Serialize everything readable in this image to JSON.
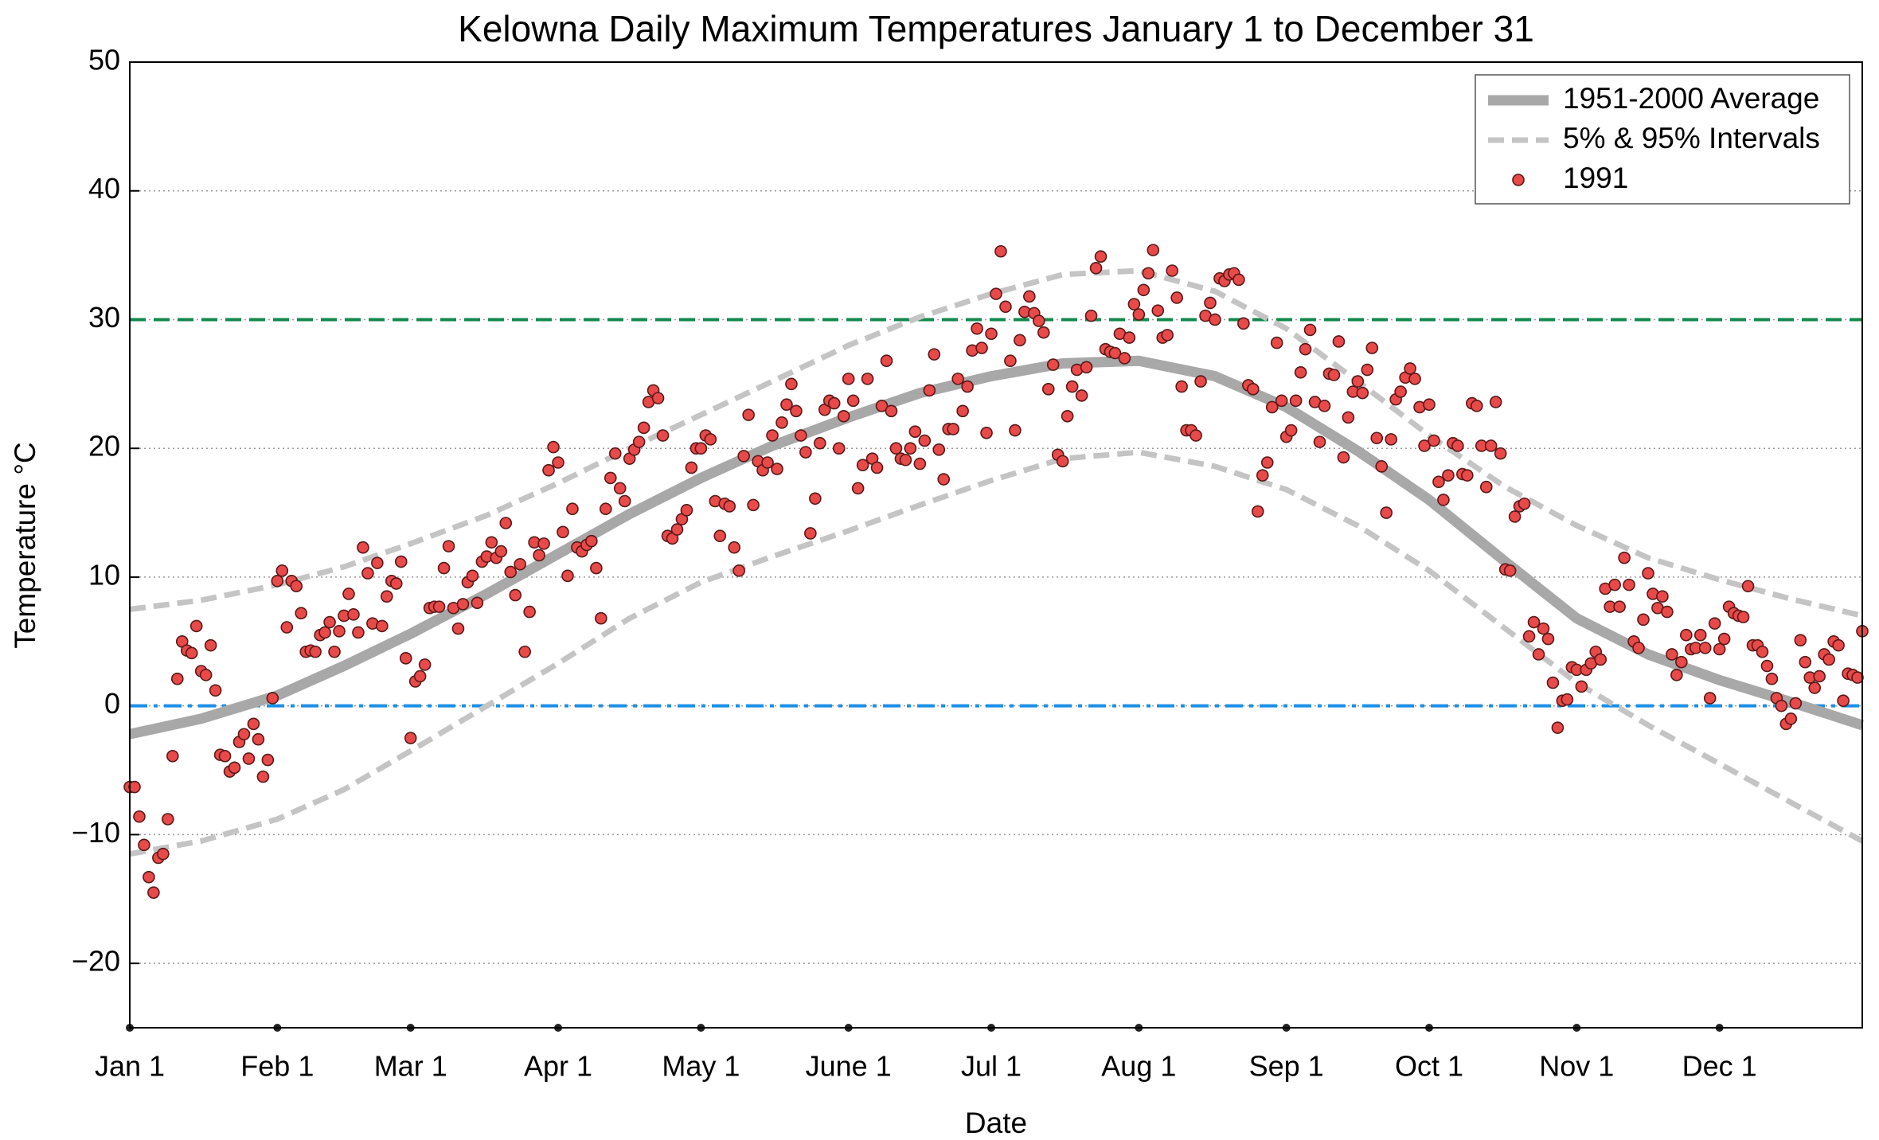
{
  "chart_data": {
    "type": "scatter",
    "title": "Kelowna Daily Maximum Temperatures January 1 to December 31",
    "xlabel": "Date",
    "ylabel": "Temperature °C",
    "xlim": [
      0,
      364
    ],
    "ylim": [
      -25,
      50
    ],
    "xticks": [
      {
        "value": 0,
        "label": "Jan 1"
      },
      {
        "value": 31,
        "label": "Feb 1"
      },
      {
        "value": 59,
        "label": "Mar 1"
      },
      {
        "value": 90,
        "label": "Apr 1"
      },
      {
        "value": 120,
        "label": "May 1"
      },
      {
        "value": 151,
        "label": "June 1"
      },
      {
        "value": 181,
        "label": "Jul 1"
      },
      {
        "value": 212,
        "label": "Aug 1"
      },
      {
        "value": 243,
        "label": "Sep 1"
      },
      {
        "value": 273,
        "label": "Oct 1"
      },
      {
        "value": 304,
        "label": "Nov 1"
      },
      {
        "value": 334,
        "label": "Dec 1"
      }
    ],
    "yticks": [
      {
        "value": -20,
        "label": "−20"
      },
      {
        "value": -10,
        "label": "−10"
      },
      0,
      10,
      20,
      30,
      40,
      50
    ],
    "grid": true,
    "legend": "upper right",
    "hlines": [
      {
        "value": 30,
        "color": "#14894e",
        "style": "dashed"
      },
      {
        "value": 0,
        "color": "#1a8fe6",
        "style": "dashdot"
      }
    ],
    "series": [
      {
        "name": "1951-2000 Average",
        "type": "line",
        "style": "solid",
        "color": "#a8a8a8",
        "x": [
          0,
          15,
          31,
          45,
          59,
          75,
          90,
          105,
          120,
          135,
          151,
          166,
          181,
          196,
          212,
          228,
          243,
          258,
          273,
          289,
          304,
          319,
          334,
          349,
          364
        ],
        "values": [
          -2.2,
          -1.0,
          0.8,
          3.1,
          5.6,
          8.7,
          11.8,
          14.9,
          17.7,
          20.2,
          22.4,
          24.3,
          25.6,
          26.6,
          26.8,
          25.6,
          23.2,
          19.8,
          16.0,
          11.2,
          6.8,
          4.0,
          2.0,
          0.3,
          -1.5
        ]
      },
      {
        "name": "5% & 95% Intervals",
        "type": "line",
        "style": "dashed",
        "color": "#c4c4c4",
        "x": [
          0,
          15,
          31,
          45,
          59,
          75,
          90,
          105,
          120,
          135,
          151,
          166,
          181,
          196,
          212,
          228,
          243,
          258,
          273,
          289,
          304,
          319,
          334,
          349,
          364
        ],
        "values": [
          7.5,
          8.2,
          9.4,
          10.8,
          12.6,
          14.8,
          17.3,
          20.0,
          22.6,
          25.2,
          28.0,
          30.2,
          32.0,
          33.5,
          33.8,
          32.2,
          29.3,
          25.2,
          21.0,
          17.0,
          14.0,
          11.5,
          9.8,
          8.3,
          7.0
        ],
        "lower": [
          -11.5,
          -10.5,
          -8.8,
          -6.5,
          -3.5,
          0.0,
          3.3,
          6.8,
          9.6,
          11.6,
          13.6,
          15.6,
          17.5,
          19.2,
          19.7,
          18.6,
          16.8,
          14.0,
          10.5,
          6.0,
          1.8,
          -1.5,
          -4.5,
          -7.5,
          -10.5
        ]
      },
      {
        "name": "1991",
        "type": "scatter",
        "color": "#e84a4a",
        "x": [
          0,
          1,
          2,
          3,
          4,
          5,
          6,
          7,
          8,
          9,
          10,
          11,
          12,
          13,
          14,
          15,
          16,
          17,
          18,
          19,
          20,
          21,
          22,
          23,
          24,
          25,
          26,
          27,
          28,
          29,
          30,
          31,
          32,
          33,
          34,
          35,
          36,
          37,
          38,
          39,
          40,
          41,
          42,
          43,
          44,
          45,
          46,
          47,
          48,
          49,
          50,
          51,
          52,
          53,
          54,
          55,
          56,
          57,
          58,
          59,
          60,
          61,
          62,
          63,
          64,
          65,
          66,
          67,
          68,
          69,
          70,
          71,
          72,
          73,
          74,
          75,
          76,
          77,
          78,
          79,
          80,
          81,
          82,
          83,
          84,
          85,
          86,
          87,
          88,
          89,
          90,
          91,
          92,
          93,
          94,
          95,
          96,
          97,
          98,
          99,
          100,
          101,
          102,
          103,
          104,
          105,
          106,
          107,
          108,
          109,
          110,
          111,
          112,
          113,
          114,
          115,
          116,
          117,
          118,
          119,
          120,
          121,
          122,
          123,
          124,
          125,
          126,
          127,
          128,
          129,
          130,
          131,
          132,
          133,
          134,
          135,
          136,
          137,
          138,
          139,
          140,
          141,
          142,
          143,
          144,
          145,
          146,
          147,
          148,
          149,
          150,
          151,
          152,
          153,
          154,
          155,
          156,
          157,
          158,
          159,
          160,
          161,
          162,
          163,
          164,
          165,
          166,
          167,
          168,
          169,
          170,
          171,
          172,
          173,
          174,
          175,
          176,
          177,
          178,
          179,
          180,
          181,
          182,
          183,
          184,
          185,
          186,
          187,
          188,
          189,
          190,
          191,
          192,
          193,
          194,
          195,
          196,
          197,
          198,
          199,
          200,
          201,
          202,
          203,
          204,
          205,
          206,
          207,
          208,
          209,
          210,
          211,
          212,
          213,
          214,
          215,
          216,
          217,
          218,
          219,
          220,
          221,
          222,
          223,
          224,
          225,
          226,
          227,
          228,
          229,
          230,
          231,
          232,
          233,
          234,
          235,
          236,
          237,
          238,
          239,
          240,
          241,
          242,
          243,
          244,
          245,
          246,
          247,
          248,
          249,
          250,
          251,
          252,
          253,
          254,
          255,
          256,
          257,
          258,
          259,
          260,
          261,
          262,
          263,
          264,
          265,
          266,
          267,
          268,
          269,
          270,
          271,
          272,
          273,
          274,
          275,
          276,
          277,
          278,
          279,
          280,
          281,
          282,
          283,
          284,
          285,
          286,
          287,
          288,
          289,
          290,
          291,
          292,
          293,
          294,
          295,
          296,
          297,
          298,
          299,
          300,
          301,
          302,
          303,
          304,
          305,
          306,
          307,
          308,
          309,
          310,
          311,
          312,
          313,
          314,
          315,
          316,
          317,
          318,
          319,
          320,
          321,
          322,
          323,
          324,
          325,
          326,
          327,
          328,
          329,
          330,
          331,
          332,
          333,
          334,
          335,
          336,
          337,
          338,
          339,
          340,
          341,
          342,
          343,
          344,
          345,
          346,
          347,
          348,
          349,
          350,
          351,
          352,
          353,
          354,
          355,
          356,
          357,
          358,
          359,
          360,
          361,
          362,
          363,
          364
        ],
        "values": [
          -6.3,
          -6.3,
          -8.6,
          -10.8,
          -13.3,
          -14.5,
          -11.8,
          -11.5,
          -8.8,
          -3.9,
          2.1,
          5.0,
          4.3,
          4.1,
          6.2,
          2.7,
          2.4,
          4.7,
          1.2,
          -3.8,
          -3.9,
          -5.1,
          -4.8,
          -2.8,
          -2.2,
          -4.1,
          -1.4,
          -2.6,
          -5.5,
          -4.2,
          0.6,
          9.7,
          10.5,
          6.1,
          9.7,
          9.3,
          7.2,
          4.2,
          4.3,
          4.2,
          5.5,
          5.7,
          6.5,
          4.2,
          5.8,
          7.0,
          8.7,
          7.1,
          5.7,
          12.3,
          10.3,
          6.4,
          11.1,
          6.2,
          8.5,
          9.7,
          9.5,
          11.2,
          3.7,
          -2.5,
          1.9,
          2.3,
          3.2,
          7.6,
          7.7,
          7.7,
          10.7,
          12.4,
          7.6,
          6.0,
          7.9,
          9.6,
          10.1,
          8.0,
          11.2,
          11.6,
          12.7,
          11.5,
          12.0,
          14.2,
          10.4,
          8.6,
          11.0,
          4.2,
          7.3,
          12.7,
          11.7,
          12.6,
          18.3,
          20.1,
          18.9,
          13.5,
          10.1,
          15.3,
          12.3,
          12.0,
          12.5,
          12.8,
          10.7,
          6.8,
          15.3,
          17.7,
          19.6,
          16.9,
          15.9,
          19.2,
          19.9,
          20.5,
          21.6,
          23.6,
          24.5,
          23.9,
          21.0,
          13.2,
          13.0,
          13.7,
          14.5,
          15.2,
          18.5,
          20.0,
          20.0,
          21.0,
          20.7,
          15.9,
          13.2,
          15.7,
          15.5,
          12.3,
          10.5,
          19.4,
          22.6,
          15.6,
          19.0,
          18.3,
          18.9,
          21.0,
          18.4,
          22.0,
          23.4,
          25.0,
          22.9,
          21.0,
          19.7,
          13.4,
          16.1,
          20.4,
          23.0,
          23.7,
          23.5,
          20.0,
          22.5,
          25.4,
          23.7,
          16.9,
          18.7,
          25.4,
          19.2,
          18.5,
          23.3,
          26.8,
          22.9,
          20.0,
          19.2,
          19.1,
          20.0,
          21.3,
          18.8,
          20.6,
          24.5,
          27.3,
          19.9,
          17.6,
          21.5,
          21.5,
          25.4,
          22.9,
          24.8,
          27.6,
          29.3,
          27.8,
          21.2,
          28.9,
          32.0,
          35.3,
          31.0,
          26.8,
          21.4,
          28.4,
          30.6,
          31.8,
          30.5,
          29.9,
          29.0,
          24.6,
          26.5,
          19.5,
          19.0,
          22.5,
          24.8,
          26.1,
          24.1,
          26.3,
          30.3,
          34.0,
          34.9,
          27.7,
          27.5,
          27.4,
          28.9,
          27.0,
          28.6,
          31.2,
          30.4,
          32.3,
          33.6,
          35.4,
          30.7,
          28.6,
          28.8,
          33.8,
          31.7,
          24.8,
          21.4,
          21.4,
          21.0,
          25.2,
          30.3,
          31.3,
          30.0,
          33.2,
          33.0,
          33.5,
          33.6,
          33.1,
          29.7,
          24.9,
          24.6,
          15.1,
          17.9,
          18.9,
          23.2,
          28.2,
          23.7,
          20.9,
          21.4,
          23.7,
          25.9,
          27.7,
          29.2,
          23.6,
          20.5,
          23.3,
          25.8,
          25.7,
          28.3,
          19.3,
          22.4,
          24.4,
          25.2,
          24.3,
          26.1,
          27.8,
          20.8,
          18.6,
          15.0,
          20.7,
          23.8,
          24.4,
          25.5,
          26.2,
          25.4,
          23.2,
          20.2,
          23.4,
          20.6,
          17.4,
          16.0,
          17.9,
          20.4,
          20.2,
          18.0,
          17.9,
          23.5,
          23.3,
          20.2,
          17.0,
          20.2,
          23.6,
          19.6,
          10.6,
          10.5,
          14.7,
          15.5,
          15.7,
          5.4,
          6.5,
          4.0,
          6.0,
          5.2,
          1.8,
          -1.7,
          0.4,
          0.5,
          3.0,
          2.8,
          1.5,
          2.8,
          3.3,
          4.2,
          3.6,
          9.1,
          7.7,
          9.4,
          7.7,
          11.5,
          9.4,
          5.0,
          4.5,
          6.7,
          10.3,
          8.7,
          7.6,
          8.5,
          7.3,
          4.0,
          2.4,
          3.4,
          5.5,
          4.4,
          4.5,
          5.5,
          4.5,
          0.6,
          6.4,
          4.4,
          5.2,
          7.7,
          7.2,
          7.0,
          6.9,
          9.3,
          4.7,
          4.7,
          4.2,
          3.1,
          2.1,
          0.6,
          0.0,
          -1.4,
          -1.0,
          0.2,
          5.1,
          3.4,
          2.2,
          1.4,
          2.3,
          4.0,
          3.6,
          5.0,
          4.7,
          0.4,
          2.5,
          2.4,
          2.2,
          5.8
        ]
      }
    ]
  }
}
